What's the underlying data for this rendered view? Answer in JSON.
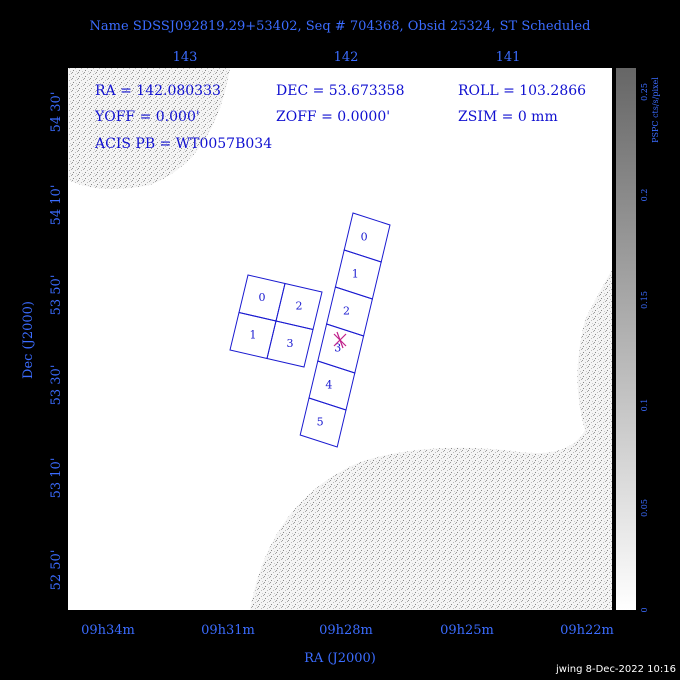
{
  "header": {
    "title": "Name SDSSJ092819.29+53402, Seq # 704368, Obsid 25324, ST Scheduled"
  },
  "axes": {
    "top": [
      "143",
      "142",
      "141"
    ],
    "left": [
      "54 30'",
      "54 10'",
      "53 50'",
      "53 30'",
      "53 10'",
      "52 50'"
    ],
    "bottom": [
      "09h34m",
      "09h31m",
      "09h28m",
      "09h25m",
      "09h22m"
    ],
    "x_title": "RA (J2000)",
    "y_title": "Dec (J2000)"
  },
  "colorbar": {
    "title": "PSPC cts/s/pixel",
    "labels": [
      "0.25",
      "0.2",
      "0.15",
      "0.1",
      "0.05",
      "0"
    ]
  },
  "info": [
    "RA = 142.080333",
    "DEC = 53.673358",
    "ROLL = 103.2866",
    "YOFF =   0.000'",
    "ZOFF =  0.0000'",
    "ZSIM = 0 mm",
    "ACIS PB = WT0057B034"
  ],
  "chips": {
    "acis_i": [
      "0",
      "2",
      "1",
      "3"
    ],
    "acis_s": [
      "0",
      "1",
      "2",
      "3",
      "4",
      "5"
    ]
  },
  "footer": "jwing  8-Dec-2022 10:16"
}
